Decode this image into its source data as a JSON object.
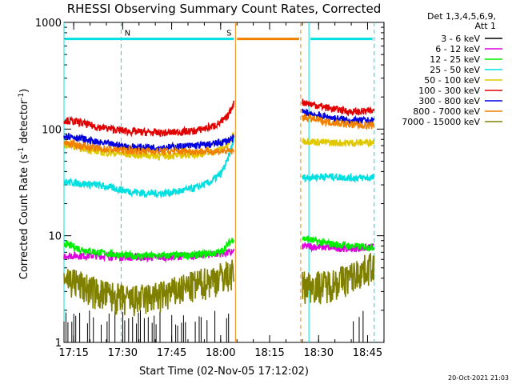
{
  "chart_data": {
    "type": "line",
    "title": "RHESSI Observing Summary Count Rates, Corrected",
    "xlabel": "Start Time (02-Nov-05 17:12:02)",
    "ylabel_main": "Corrected Count Rate (s",
    "ylabel_sup1": "-1",
    "ylabel_mid": " detector",
    "ylabel_sup2": "-1",
    "ylabel_end": ")",
    "x_start_time": "17:12:02",
    "xlim_minutes": [
      0,
      98
    ],
    "y_scale": "log",
    "ylim": [
      1,
      1000
    ],
    "x_ticks": [
      {
        "label": "17:15",
        "minute": 2.97
      },
      {
        "label": "17:30",
        "minute": 17.97
      },
      {
        "label": "17:45",
        "minute": 32.97
      },
      {
        "label": "18:00",
        "minute": 47.97
      },
      {
        "label": "18:15",
        "minute": 62.97
      },
      {
        "label": "18:30",
        "minute": 77.97
      },
      {
        "label": "18:45",
        "minute": 92.97
      }
    ],
    "y_ticks": [
      {
        "label": "1",
        "value": 1
      },
      {
        "label": "10",
        "value": 10
      },
      {
        "label": "100",
        "value": 100
      },
      {
        "label": "1000",
        "value": 1000
      }
    ],
    "legend_header": [
      "Det 1,3,4,5,6,9,",
      "Att 1"
    ],
    "legend_position": "right",
    "gaps_minutes": [
      [
        52.5,
        72.5
      ]
    ],
    "series": [
      {
        "name": "3 - 6 keV",
        "color": "#000000",
        "points": [
          [
            0,
            1.5
          ],
          [
            10,
            1.5
          ],
          [
            20,
            1.5
          ],
          [
            30,
            1.5
          ],
          [
            40,
            1.5
          ],
          [
            52,
            1.5
          ],
          [
            73,
            1.5
          ],
          [
            80,
            1.5
          ],
          [
            88,
            1.5
          ],
          [
            95,
            1.5
          ]
        ]
      },
      {
        "name": "6 - 12 keV",
        "color": "#e000e0",
        "points": [
          [
            0,
            6.5
          ],
          [
            10,
            6.5
          ],
          [
            20,
            6.3
          ],
          [
            30,
            6.3
          ],
          [
            40,
            6.5
          ],
          [
            52,
            7.0
          ],
          [
            73,
            8.0
          ],
          [
            80,
            7.8
          ],
          [
            88,
            7.6
          ],
          [
            95,
            7.8
          ]
        ]
      },
      {
        "name": "12 - 25 keV",
        "color": "#00ee00",
        "points": [
          [
            0,
            8.5
          ],
          [
            5,
            7.5
          ],
          [
            10,
            7.0
          ],
          [
            20,
            6.5
          ],
          [
            30,
            6.5
          ],
          [
            40,
            6.6
          ],
          [
            48,
            7.0
          ],
          [
            52,
            9.5
          ],
          [
            73,
            9.5
          ],
          [
            80,
            8.5
          ],
          [
            88,
            8.0
          ],
          [
            95,
            7.8
          ]
        ]
      },
      {
        "name": "25 - 50 keV",
        "color": "#00e0e0",
        "points": [
          [
            0,
            32
          ],
          [
            5,
            31
          ],
          [
            10,
            30
          ],
          [
            15,
            28
          ],
          [
            20,
            26
          ],
          [
            25,
            25
          ],
          [
            30,
            25
          ],
          [
            35,
            26
          ],
          [
            40,
            28
          ],
          [
            45,
            32
          ],
          [
            48,
            38
          ],
          [
            50,
            50
          ],
          [
            52,
            80
          ],
          [
            73,
            35
          ],
          [
            80,
            36
          ],
          [
            88,
            35
          ],
          [
            95,
            35
          ]
        ]
      },
      {
        "name": "50 - 100 keV",
        "color": "#e0c800",
        "points": [
          [
            0,
            72
          ],
          [
            10,
            62
          ],
          [
            20,
            58
          ],
          [
            30,
            56
          ],
          [
            40,
            58
          ],
          [
            45,
            60
          ],
          [
            48,
            65
          ],
          [
            50,
            70
          ],
          [
            52,
            90
          ],
          [
            73,
            78
          ],
          [
            80,
            75
          ],
          [
            88,
            74
          ],
          [
            95,
            76
          ]
        ]
      },
      {
        "name": "100 - 300 keV",
        "color": "#e00000",
        "points": [
          [
            0,
            122
          ],
          [
            5,
            115
          ],
          [
            10,
            105
          ],
          [
            20,
            95
          ],
          [
            30,
            92
          ],
          [
            40,
            96
          ],
          [
            45,
            105
          ],
          [
            48,
            115
          ],
          [
            50,
            130
          ],
          [
            52,
            175
          ],
          [
            73,
            180
          ],
          [
            80,
            160
          ],
          [
            88,
            145
          ],
          [
            95,
            148
          ]
        ]
      },
      {
        "name": "300 - 800 keV",
        "color": "#0000e0",
        "points": [
          [
            0,
            88
          ],
          [
            5,
            82
          ],
          [
            10,
            75
          ],
          [
            20,
            68
          ],
          [
            30,
            67
          ],
          [
            40,
            70
          ],
          [
            45,
            72
          ],
          [
            48,
            75
          ],
          [
            50,
            78
          ],
          [
            52,
            82
          ],
          [
            73,
            145
          ],
          [
            80,
            130
          ],
          [
            88,
            120
          ],
          [
            95,
            120
          ]
        ]
      },
      {
        "name": "800 - 7000 keV",
        "color": "#f08000",
        "points": [
          [
            0,
            75
          ],
          [
            5,
            70
          ],
          [
            10,
            66
          ],
          [
            20,
            63
          ],
          [
            30,
            62
          ],
          [
            40,
            62
          ],
          [
            45,
            62
          ],
          [
            48,
            62
          ],
          [
            50,
            62
          ],
          [
            52,
            62
          ],
          [
            73,
            130
          ],
          [
            80,
            118
          ],
          [
            88,
            110
          ],
          [
            95,
            108
          ]
        ]
      },
      {
        "name": "7000 - 15000 keV",
        "color": "#808000",
        "points": [
          [
            0,
            4.2
          ],
          [
            5,
            3.5
          ],
          [
            10,
            3.0
          ],
          [
            20,
            2.5
          ],
          [
            30,
            2.8
          ],
          [
            40,
            3.5
          ],
          [
            48,
            4.2
          ],
          [
            52,
            4.5
          ],
          [
            73,
            3.5
          ],
          [
            80,
            3.5
          ],
          [
            88,
            4.2
          ],
          [
            95,
            5.5
          ]
        ]
      }
    ],
    "annotations": [
      {
        "label": "N",
        "color": "#00e0e0",
        "y": 700,
        "x_start": 0,
        "x_end": 52.5,
        "markers": [
          0,
          17.5
        ]
      },
      {
        "label": "S",
        "color": "#f08000",
        "y": 700,
        "x_start": 52.5,
        "x_end": 72.5,
        "markers": [
          52.5,
          72.5
        ]
      },
      {
        "label": "",
        "color": "#00e0e0",
        "y": 700,
        "x_start": 75,
        "x_end": 95,
        "markers": [
          75,
          95
        ]
      }
    ]
  },
  "footer_date": "20-Oct-2021 21:03"
}
